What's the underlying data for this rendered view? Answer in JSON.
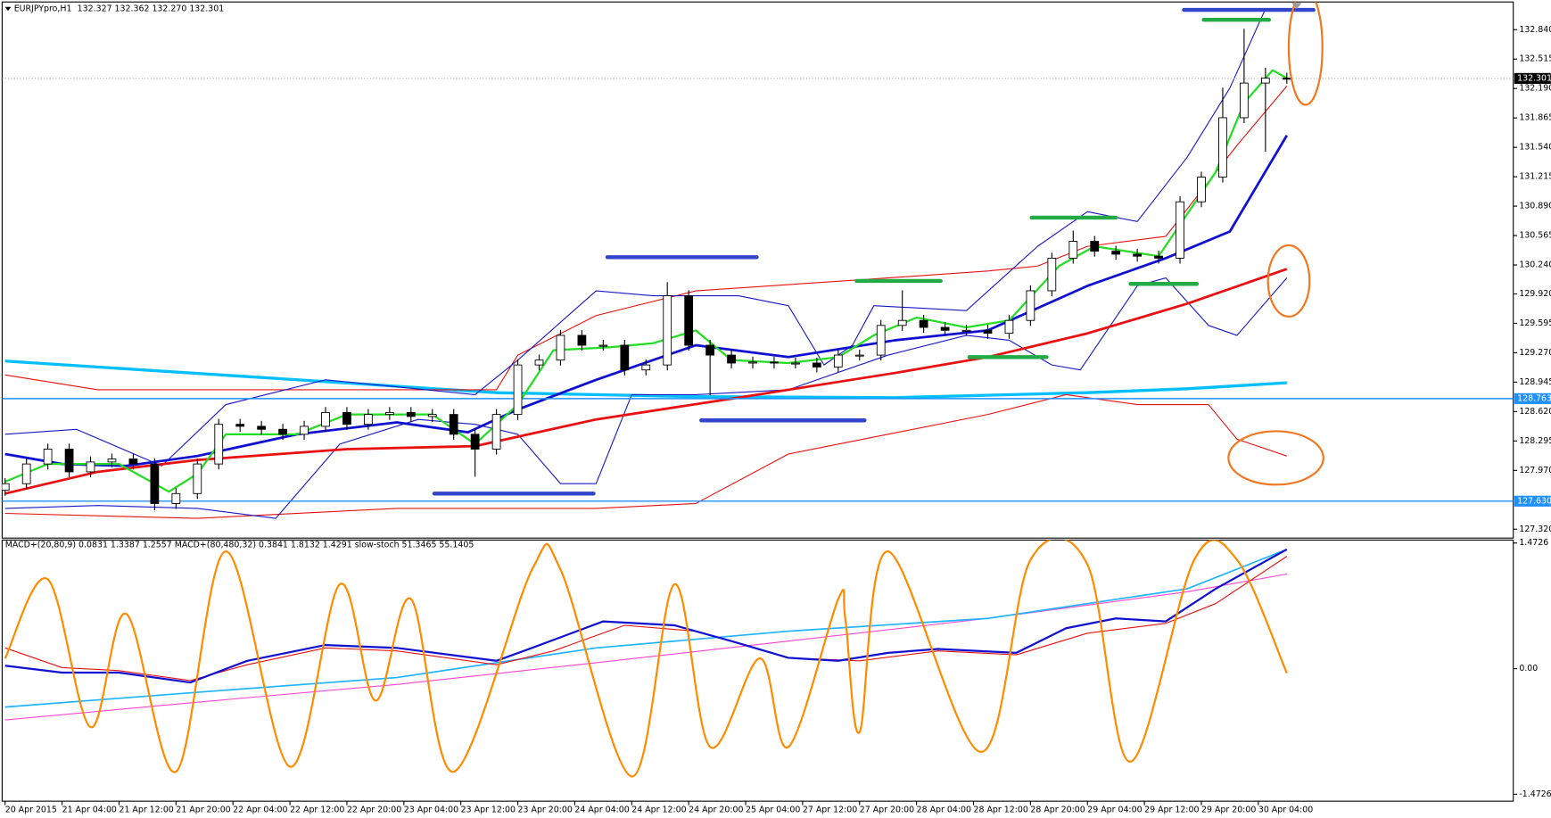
{
  "chart_data": [
    {
      "type": "candlestick",
      "title": "EURJPYpro,H1",
      "ohlc_label": "132.327 132.362 132.270 132.301",
      "xlim": [
        -0.417,
        211.8
      ],
      "ylim": [
        127.222,
        133.146
      ],
      "yticks": [
        {
          "value": 132.84,
          "label": "132.840"
        },
        132.515,
        {
          "value": 132.19,
          "label": "132.190"
        },
        131.865,
        {
          "value": 131.54,
          "label": "131.540"
        },
        131.215,
        {
          "value": 130.89,
          "label": "130.890"
        },
        130.565,
        {
          "value": 130.24,
          "label": "130.240"
        },
        {
          "value": 129.92,
          "label": "129.920"
        },
        129.595,
        {
          "value": 129.27,
          "label": "129.270"
        },
        128.945,
        {
          "value": 128.62,
          "label": "128.620"
        },
        128.295,
        {
          "value": 127.97,
          "label": "127.970"
        },
        {
          "value": 127.32,
          "label": "127.320"
        }
      ],
      "price_levels": [
        132.301,
        128.763,
        {
          "value": 127.63,
          "label": "127.630"
        }
      ],
      "price_level_colors": [
        "#000000",
        "#1e90ff",
        "#1e90ff"
      ],
      "x": [
        0,
        3,
        6,
        9,
        12,
        15,
        18,
        21,
        24,
        27,
        30,
        33,
        36,
        39,
        42,
        45,
        48,
        51,
        54,
        57,
        60,
        63,
        66,
        69,
        72,
        75,
        78,
        81,
        84,
        87,
        90,
        93,
        96,
        99,
        102,
        105,
        108,
        111,
        114,
        117,
        120,
        123,
        126,
        129,
        132,
        135,
        138,
        141,
        144,
        147,
        150,
        153,
        156,
        159,
        162,
        165,
        168,
        171,
        174,
        177,
        180
      ],
      "open": [
        127.75,
        127.823,
        128.041,
        128.205,
        127.954,
        128.063,
        128.096,
        128.041,
        127.604,
        127.714,
        128.041,
        128.479,
        128.457,
        128.424,
        128.369,
        128.457,
        128.61,
        128.479,
        128.588,
        128.61,
        128.566,
        128.588,
        128.369,
        128.205,
        128.588,
        129.135,
        129.189,
        129.462,
        129.353,
        129.353,
        129.08,
        129.135,
        129.9,
        129.353,
        129.244,
        129.156,
        129.167,
        129.156,
        129.156,
        129.113,
        129.244,
        129.244,
        129.572,
        129.627,
        129.55,
        129.518,
        129.518,
        129.485,
        129.627,
        129.955,
        130.315,
        130.501,
        130.392,
        130.359,
        130.337,
        130.315,
        130.938,
        131.211,
        131.867,
        132.25,
        132.304
      ],
      "high": [
        127.883,
        128.101,
        128.265,
        128.265,
        128.123,
        128.156,
        128.156,
        128.101,
        127.774,
        128.101,
        128.539,
        128.539,
        128.517,
        128.484,
        128.517,
        128.67,
        128.67,
        128.648,
        128.67,
        128.67,
        128.648,
        128.648,
        128.429,
        128.648,
        129.195,
        129.249,
        129.522,
        129.522,
        129.413,
        129.413,
        129.195,
        130.05,
        129.96,
        129.413,
        129.304,
        129.227,
        129.227,
        129.216,
        129.216,
        129.304,
        129.304,
        129.632,
        129.96,
        129.687,
        129.61,
        129.578,
        129.578,
        129.687,
        130.015,
        130.375,
        130.62,
        130.561,
        130.452,
        130.419,
        130.397,
        130.998,
        131.271,
        132.2,
        132.85,
        132.42,
        132.364
      ],
      "low": [
        127.69,
        127.763,
        127.981,
        127.894,
        127.894,
        128.003,
        127.981,
        127.53,
        127.544,
        127.654,
        127.981,
        128.397,
        128.364,
        128.309,
        128.309,
        128.397,
        128.419,
        128.419,
        128.528,
        128.506,
        128.506,
        128.309,
        127.9,
        128.145,
        128.528,
        129.075,
        129.129,
        129.293,
        129.293,
        129.02,
        129.02,
        129.075,
        129.293,
        128.8,
        129.096,
        129.096,
        129.096,
        129.096,
        129.053,
        129.053,
        129.184,
        129.184,
        129.512,
        129.49,
        129.458,
        129.458,
        129.425,
        129.425,
        129.567,
        129.895,
        130.255,
        130.332,
        130.299,
        130.277,
        130.255,
        130.255,
        130.878,
        131.151,
        131.807,
        131.49,
        132.241
      ],
      "close": [
        127.823,
        128.041,
        128.205,
        127.954,
        128.063,
        128.096,
        128.041,
        127.604,
        127.714,
        128.041,
        128.479,
        128.457,
        128.424,
        128.369,
        128.457,
        128.61,
        128.479,
        128.588,
        128.61,
        128.566,
        128.588,
        128.369,
        128.205,
        128.588,
        129.135,
        129.189,
        129.462,
        129.353,
        129.353,
        129.08,
        129.135,
        129.9,
        129.353,
        129.244,
        129.156,
        129.167,
        129.156,
        129.156,
        129.113,
        129.244,
        129.244,
        129.572,
        129.627,
        129.55,
        129.518,
        129.518,
        129.485,
        129.627,
        129.955,
        130.315,
        130.501,
        130.392,
        130.359,
        130.337,
        130.315,
        130.938,
        131.211,
        131.867,
        132.25,
        132.304,
        132.301
      ],
      "series": [
        {
          "color": "#00bfff",
          "width": 3,
          "x": [
            0,
            41,
            69,
            97,
            125,
            152,
            166,
            180
          ],
          "values": [
            129.178,
            128.971,
            128.829,
            128.785,
            128.774,
            128.829,
            128.872,
            128.938
          ]
        },
        {
          "color": "#e81010",
          "width": 1,
          "x": [
            0,
            13,
            41,
            69,
            72,
            83,
            97,
            124,
            138,
            145,
            152,
            163,
            173,
            180
          ],
          "values": [
            129.025,
            128.861,
            128.861,
            128.861,
            129.244,
            129.681,
            129.954,
            130.097,
            130.173,
            130.228,
            130.446,
            130.556,
            131.561,
            132.217
          ]
        },
        {
          "color": "#e81010",
          "width": 1,
          "x": [
            0,
            27,
            55,
            83,
            97,
            110,
            124,
            138,
            149,
            159,
            169,
            173,
            180
          ],
          "values": [
            127.495,
            127.44,
            127.55,
            127.55,
            127.604,
            128.151,
            128.369,
            128.588,
            128.807,
            128.697,
            128.697,
            128.315,
            128.129
          ]
        },
        {
          "color": "#1818c8",
          "width": 1,
          "x": [
            0,
            10,
            22,
            31,
            45,
            66,
            72,
            83,
            91,
            103,
            110,
            115,
            119,
            122,
            135,
            145,
            152,
            159,
            166,
            172,
            177
          ],
          "values": [
            128.369,
            128.424,
            128.02,
            128.697,
            128.971,
            128.807,
            129.189,
            129.954,
            129.9,
            129.9,
            129.79,
            129.135,
            129.353,
            129.79,
            129.736,
            130.446,
            130.829,
            130.72,
            131.43,
            132.195,
            133.07
          ]
        },
        {
          "color": "#1818c8",
          "width": 1,
          "x": [
            0,
            13,
            27,
            38,
            47,
            58,
            66,
            72,
            78,
            83,
            88,
            97,
            110,
            124,
            135,
            141,
            147,
            151,
            159,
            163,
            169,
            173,
            180
          ],
          "values": [
            127.55,
            127.582,
            127.55,
            127.44,
            128.26,
            128.533,
            128.479,
            128.369,
            127.823,
            127.823,
            128.807,
            128.807,
            128.861,
            129.244,
            129.462,
            129.408,
            129.135,
            129.08,
            130.009,
            130.097,
            129.572,
            129.462,
            130.097
          ]
        },
        {
          "color": "#e81010",
          "width": 2.5,
          "x": [
            0,
            13,
            27,
            48,
            66,
            83,
            103,
            125,
            138,
            152,
            166,
            180
          ],
          "values": [
            127.714,
            127.954,
            128.085,
            128.205,
            128.238,
            128.533,
            128.774,
            129.047,
            129.222,
            129.484,
            129.812,
            130.195
          ]
        },
        {
          "color": "#1010d0",
          "width": 2.5,
          "x": [
            0,
            8,
            17,
            27,
            41,
            55,
            65,
            72,
            83,
            97,
            110,
            125,
            138,
            152,
            163,
            172,
            180
          ],
          "values": [
            128.151,
            128.041,
            128.02,
            128.129,
            128.369,
            128.5,
            128.391,
            128.643,
            128.971,
            129.353,
            129.222,
            129.408,
            129.517,
            130.009,
            130.315,
            130.61,
            131.671
          ]
        },
        {
          "color": "#22dd22",
          "width": 2,
          "x": [
            0,
            6,
            16,
            23,
            27,
            31,
            41,
            48,
            60,
            66,
            72,
            77,
            85,
            91,
            97,
            102,
            110,
            117,
            122,
            128,
            135,
            141,
            148,
            153,
            162,
            170,
            174,
            178,
            180
          ],
          "values": [
            127.845,
            128.041,
            128.041,
            127.735,
            127.932,
            128.369,
            128.369,
            128.588,
            128.588,
            128.261,
            128.697,
            129.298,
            129.331,
            129.375,
            129.517,
            129.189,
            129.156,
            129.222,
            129.462,
            129.659,
            129.55,
            129.627,
            130.228,
            130.446,
            130.337,
            131.266,
            132.031,
            132.392,
            132.304
          ]
        }
      ]
    },
    {
      "type": "line",
      "indicator_label": "MACD+(20,80,9) 0.0831 1.3387 1.2557  MACD+(80,480,32) 0.3841 1.8132 1.4291  slow-stoch 51.3465 55.1405",
      "xlim": [
        -0.417,
        211.8
      ],
      "ylim": [
        -1.5535,
        1.5073
      ],
      "yticks": [
        1.4726,
        {
          "value": 0,
          "label": "0.00"
        },
        -1.4726
      ],
      "y2lim": [
        -10,
        105
      ],
      "xticks": [
        {
          "value": 0,
          "label": "20 Apr 2015"
        },
        {
          "value": 8,
          "label": "21 Apr 04:00"
        },
        {
          "value": 16,
          "label": "21 Apr 12:00"
        },
        {
          "value": 24,
          "label": "21 Apr 20:00"
        },
        {
          "value": 32,
          "label": "22 Apr 04:00"
        },
        {
          "value": 40,
          "label": "22 Apr 12:00"
        },
        {
          "value": 48,
          "label": "22 Apr 20:00"
        },
        {
          "value": 56,
          "label": "23 Apr 04:00"
        },
        {
          "value": 64,
          "label": "23 Apr 12:00"
        },
        {
          "value": 72,
          "label": "23 Apr 20:00"
        },
        {
          "value": 80,
          "label": "24 Apr 04:00"
        },
        {
          "value": 88,
          "label": "24 Apr 12:00"
        },
        {
          "value": 96,
          "label": "24 Apr 20:00"
        },
        {
          "value": 104,
          "label": "25 Apr 04:00"
        },
        {
          "value": 112,
          "label": "27 Apr 12:00"
        },
        {
          "value": 120,
          "label": "27 Apr 20:00"
        },
        {
          "value": 128,
          "label": "28 Apr 04:00"
        },
        {
          "value": 136,
          "label": "28 Apr 12:00"
        },
        {
          "value": 144,
          "label": "28 Apr 20:00"
        },
        {
          "value": 152,
          "label": "29 Apr 04:00"
        },
        {
          "value": 160,
          "label": "29 Apr 12:00"
        },
        {
          "value": 168,
          "label": "29 Apr 20:00"
        },
        {
          "value": 176,
          "label": "30 Apr 04:00"
        }
      ],
      "series": [
        {
          "color": "#ff44cc",
          "width": 1,
          "x": [
            0,
            27,
            55,
            83,
            110,
            138,
            166,
            180
          ],
          "values": [
            -0.601,
            -0.393,
            -0.185,
            0.069,
            0.323,
            0.589,
            0.901,
            1.109
          ]
        },
        {
          "color": "#1eb4ff",
          "width": 1.5,
          "x": [
            0,
            27,
            55,
            83,
            110,
            138,
            166,
            180
          ],
          "values": [
            -0.45,
            -0.277,
            -0.104,
            0.243,
            0.439,
            0.589,
            0.936,
            1.398
          ]
        },
        {
          "color": "#e81010",
          "width": 1,
          "x": [
            0,
            8,
            16,
            26,
            34,
            45,
            55,
            69,
            77,
            87,
            97,
            110,
            120,
            131,
            142,
            152,
            163,
            170,
            180
          ],
          "values": [
            0.243,
            0.012,
            -0.023,
            -0.139,
            0.046,
            0.243,
            0.208,
            0.046,
            0.208,
            0.508,
            0.439,
            0.127,
            0.092,
            0.208,
            0.162,
            0.416,
            0.531,
            0.762,
            1.317
          ]
        },
        {
          "color": "#1010d0",
          "width": 2,
          "x": [
            0,
            8,
            16,
            26,
            34,
            45,
            55,
            69,
            74,
            84,
            94,
            102,
            110,
            117,
            124,
            131,
            142,
            149,
            156,
            163,
            170,
            180
          ],
          "values": [
            0.035,
            -0.046,
            -0.046,
            -0.162,
            0.092,
            0.277,
            0.243,
            0.092,
            0.243,
            0.554,
            0.508,
            0.323,
            0.127,
            0.092,
            0.185,
            0.231,
            0.185,
            0.474,
            0.589,
            0.554,
            0.936,
            1.398
          ]
        },
        {
          "color": "#ff8c00",
          "width": 2,
          "axis": "y2",
          "x": [
            0,
            6,
            12,
            17,
            24,
            31,
            40,
            47,
            52,
            57,
            63,
            74,
            78,
            88,
            94,
            99,
            106,
            110,
            117,
            118,
            120,
            124,
            137,
            144,
            152,
            158,
            167,
            173,
            180
          ],
          "values": [
            52.9,
            87.7,
            22.6,
            72.5,
            3.0,
            100,
            5.2,
            85.5,
            34.3,
            79.0,
            3.0,
            92.0,
            92.0,
            0.9,
            85.5,
            13.9,
            52.9,
            13.9,
            79.0,
            70.3,
            20.4,
            100,
            11.7,
            96.3,
            94.2,
            7.4,
            96.3,
            96.3,
            46.4
          ]
        }
      ]
    }
  ]
}
